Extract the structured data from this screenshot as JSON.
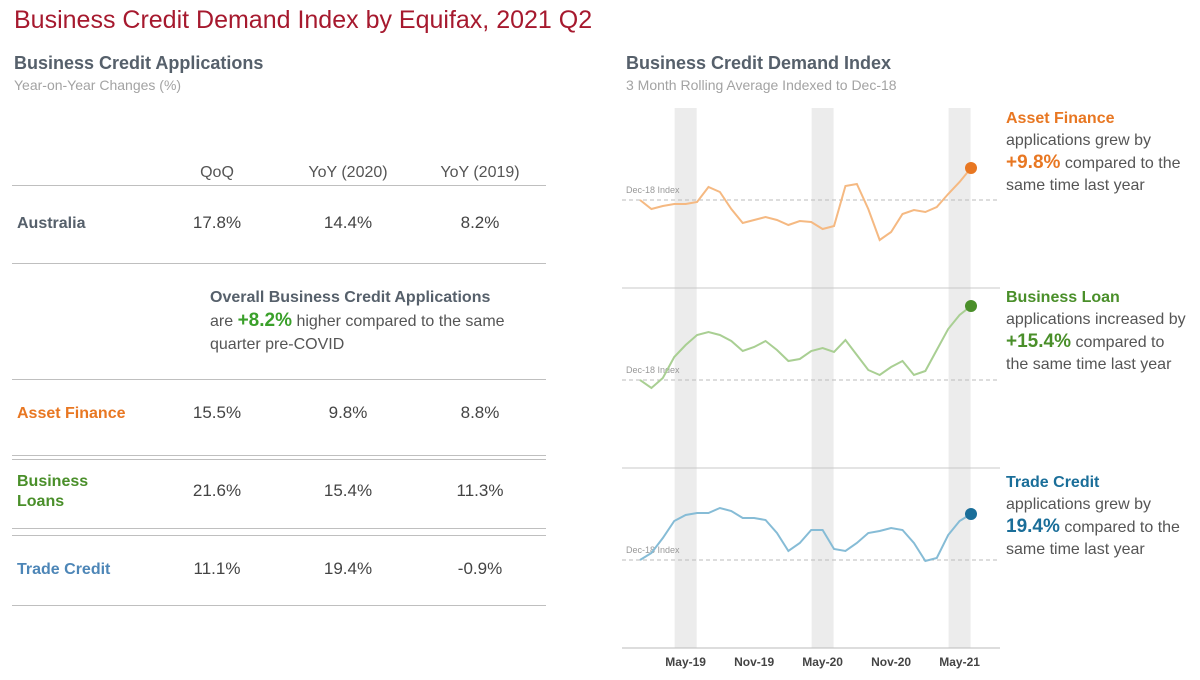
{
  "title": "Business Credit Demand Index by Equifax, 2021 Q2",
  "table_section": {
    "title": "Business Credit Applications",
    "subtitle": "Year-on-Year Changes (%)",
    "columns": [
      "QoQ",
      "YoY (2020)",
      "YoY (2019)"
    ],
    "rows": [
      {
        "label": "Australia",
        "color": "#56606b",
        "values": [
          "17.8%",
          "14.4%",
          "8.2%"
        ]
      },
      {
        "label": "Asset Finance",
        "color": "#e87722",
        "values": [
          "15.5%",
          "9.8%",
          "8.8%"
        ]
      },
      {
        "label": "Business Loans",
        "color": "#4a8f2a",
        "values": [
          "21.6%",
          "15.4%",
          "11.3%"
        ]
      },
      {
        "label": "Trade Credit",
        "color": "#4d86b7",
        "values": [
          "11.1%",
          "19.4%",
          "-0.9%"
        ]
      }
    ],
    "callout": {
      "title": "Overall Business Credit Applications",
      "before": "are",
      "highlight": "+8.2%",
      "highlight_color": "#3aa02a",
      "after": "higher compared to the same quarter pre-COVID"
    }
  },
  "chart_section": {
    "title": "Business Credit Demand Index",
    "subtitle": "3 Month Rolling Average Indexed to Dec-18",
    "categories": [
      null,
      null,
      null,
      null,
      "May-19",
      null,
      null,
      null,
      null,
      null,
      "Nov-19",
      null,
      null,
      null,
      null,
      null,
      "May-20",
      null,
      null,
      null,
      null,
      null,
      "Nov-20",
      null,
      null,
      null,
      null,
      null,
      "May-21",
      null
    ]
  },
  "chart_data": [
    {
      "type": "line",
      "name": "Asset Finance",
      "color": "#f5b982",
      "marker_color": "#e87722",
      "ylim": [
        56,
        146
      ],
      "reference": {
        "value": 100,
        "label": "Dec-18 Index"
      },
      "values": [
        100,
        95.5,
        97,
        98,
        98,
        99,
        106.5,
        104,
        95.5,
        88.5,
        90,
        91.5,
        90,
        87.5,
        89.5,
        89,
        85.5,
        87,
        107,
        108,
        95.5,
        80,
        84,
        93,
        95,
        94,
        96.5,
        103,
        109,
        116
      ],
      "annotation": {
        "title": "Asset Finance",
        "before": "applications grew by",
        "highlight": "+9.8%",
        "after": "compared to the same time last year"
      }
    },
    {
      "type": "line",
      "name": "Business Loan",
      "color": "#a9cf93",
      "marker_color": "#4a8f2a",
      "ylim": [
        56,
        146
      ],
      "reference": {
        "value": 100,
        "label": "Dec-18 Index"
      },
      "values": [
        100,
        96,
        101,
        111.5,
        117.5,
        122.5,
        124,
        122.5,
        119.5,
        114.5,
        116.5,
        119.5,
        115,
        109.5,
        110.5,
        114.5,
        116,
        114,
        120,
        112.5,
        105,
        102.5,
        106.5,
        109.5,
        102.5,
        104.5,
        115,
        125.5,
        132.5,
        137
      ],
      "annotation": {
        "title": "Business Loan",
        "before": "applications increased by",
        "highlight": "+15.4%",
        "after": "compared to the same time last year"
      }
    },
    {
      "type": "line",
      "name": "Trade Credit",
      "color": "#86bcd6",
      "marker_color": "#1a6e99",
      "ylim": [
        56,
        146
      ],
      "reference": {
        "value": 100,
        "label": "Dec-18 Index"
      },
      "values": [
        100,
        103.5,
        111,
        119.5,
        122.5,
        123.5,
        123.5,
        126,
        124.5,
        121,
        121,
        120,
        113.5,
        104.5,
        108.5,
        115,
        115,
        105.5,
        104.5,
        108.5,
        113.5,
        114.5,
        116,
        115,
        108.5,
        99.5,
        101,
        112.5,
        119.5,
        123
      ],
      "annotation": {
        "title": "Trade Credit",
        "before": "applications grew by",
        "highlight": "19.4%",
        "after": "compared to the same time last year"
      }
    }
  ]
}
